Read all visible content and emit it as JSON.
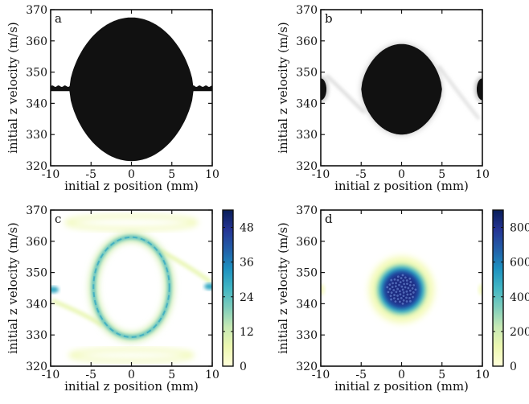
{
  "figure": {
    "panels": [
      "a",
      "b",
      "c",
      "d"
    ]
  },
  "chart_data": [
    {
      "panel": "a",
      "type": "area",
      "xlabel": "initial z position (mm)",
      "ylabel": "initial z velocity (m/s)",
      "xlim": [
        -10,
        10
      ],
      "ylim": [
        320,
        370
      ],
      "xticks": [
        -10,
        -5,
        0,
        5,
        10
      ],
      "yticks": [
        320,
        330,
        340,
        350,
        360,
        370
      ],
      "fill_color": "#111111",
      "lobe": {
        "x_range": [
          -7.7,
          7.7
        ],
        "center_y": 344.5,
        "peak_upper": 367.5,
        "peak_lower": 321.5
      },
      "tail_band": {
        "y_center": 344.7,
        "half_width": 0.8
      }
    },
    {
      "panel": "b",
      "type": "area",
      "xlabel": "initial z position (mm)",
      "ylabel": "initial z velocity (m/s)",
      "xlim": [
        -10,
        10
      ],
      "ylim": [
        320,
        370
      ],
      "xticks": [
        -10,
        -5,
        0,
        5,
        10
      ],
      "yticks": [
        320,
        330,
        340,
        350,
        360,
        370
      ],
      "fill_color": "#111111",
      "lobe": {
        "x_range": [
          -5.0,
          5.0
        ],
        "center_y": 344.5,
        "peak_upper": 359.0,
        "peak_lower": 330.0
      },
      "edge_blobs": [
        {
          "x": -10,
          "y": 344.5,
          "rx": 0.7,
          "ry": 3.5
        },
        {
          "x": 10,
          "y": 344.5,
          "rx": 0.7,
          "ry": 3.5
        }
      ]
    },
    {
      "panel": "c",
      "type": "heatmap",
      "xlabel": "initial z position (mm)",
      "ylabel": "initial z velocity (m/s)",
      "xlim": [
        -10,
        10
      ],
      "ylim": [
        320,
        370
      ],
      "xticks": [
        -10,
        -5,
        0,
        5,
        10
      ],
      "yticks": [
        320,
        330,
        340,
        350,
        360,
        370
      ],
      "colorbar": {
        "min": 0,
        "max": 54,
        "ticks": [
          0,
          12,
          24,
          36,
          48
        ]
      },
      "ring": {
        "cx": 0,
        "cy": 345.3,
        "rx": 4.7,
        "ry": 16.0,
        "peak": 30
      }
    },
    {
      "panel": "d",
      "type": "heatmap",
      "xlabel": "initial z position (mm)",
      "ylabel": "initial z velocity (m/s)",
      "xlim": [
        -10,
        10
      ],
      "ylim": [
        320,
        370
      ],
      "xticks": [
        -10,
        -5,
        0,
        5,
        10
      ],
      "yticks": [
        320,
        330,
        340,
        350,
        360,
        370
      ],
      "colorbar": {
        "min": 0,
        "max": 900,
        "ticks": [
          0,
          200,
          400,
          600,
          800
        ]
      },
      "blob": {
        "cx": 0,
        "cy": 344.5,
        "rx": 3.6,
        "ry": 9.5,
        "peak": 850
      }
    }
  ],
  "colormap": [
    "#ffffd9",
    "#edf8b1",
    "#c7e9b4",
    "#7fcdbb",
    "#41b6c4",
    "#1d91c0",
    "#225ea8",
    "#253494",
    "#081d58"
  ]
}
